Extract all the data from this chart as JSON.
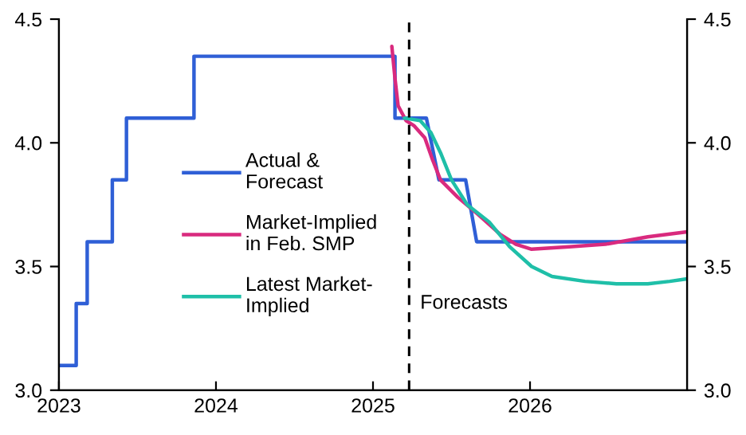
{
  "chart_data": {
    "type": "line",
    "series": [
      {
        "name": "Actual &\nForecast",
        "color": "#2f5fd6",
        "x": [
          2023.0,
          2023.11,
          2023.11,
          2023.18,
          2023.18,
          2023.34,
          2023.34,
          2023.43,
          2023.43,
          2023.86,
          2023.86,
          2025.14,
          2025.14,
          2025.34,
          2025.42,
          2025.59,
          2025.66,
          2027.0
        ],
        "values": [
          3.1,
          3.1,
          3.35,
          3.35,
          3.6,
          3.6,
          3.85,
          3.85,
          4.1,
          4.1,
          4.35,
          4.35,
          4.1,
          4.1,
          3.85,
          3.85,
          3.6,
          3.6
        ]
      },
      {
        "name": "Market-Implied\nin Feb. SMP",
        "color": "#d92a7e",
        "x": [
          2025.12,
          2025.14,
          2025.16,
          2025.21,
          2025.26,
          2025.33,
          2025.38,
          2025.43,
          2025.54,
          2025.67,
          2025.81,
          2025.91,
          2026.01,
          2026.25,
          2026.48,
          2026.75,
          2027.0
        ],
        "values": [
          4.39,
          4.26,
          4.15,
          4.09,
          4.07,
          4.02,
          3.93,
          3.85,
          3.78,
          3.71,
          3.63,
          3.59,
          3.57,
          3.58,
          3.59,
          3.62,
          3.64
        ]
      },
      {
        "name": "Latest Market-\nImplied",
        "color": "#1fbfa8",
        "x": [
          2025.2,
          2025.3,
          2025.37,
          2025.43,
          2025.5,
          2025.6,
          2025.74,
          2025.87,
          2026.01,
          2026.14,
          2026.35,
          2026.55,
          2026.75,
          2026.89,
          2027.0
        ],
        "values": [
          4.1,
          4.09,
          4.04,
          3.96,
          3.85,
          3.75,
          3.68,
          3.58,
          3.5,
          3.46,
          3.44,
          3.43,
          3.43,
          3.44,
          3.45
        ]
      }
    ],
    "xlim": [
      2023,
      2027
    ],
    "xticks": [
      2023,
      2024,
      2025,
      2026
    ],
    "ylim": [
      3,
      4.5
    ],
    "yticks": [
      {
        "value": 3,
        "label": "3.0"
      },
      {
        "value": 3.5,
        "label": "3.5"
      },
      {
        "value": 4,
        "label": "4.0"
      },
      {
        "value": 4.5,
        "label": "4.5"
      }
    ],
    "y2lim": [
      3,
      4.5
    ],
    "y2ticks": [
      {
        "value": 3,
        "label": "3.0"
      },
      {
        "value": 3.5,
        "label": "3.5"
      },
      {
        "value": 4,
        "label": "4.0"
      },
      {
        "value": 4.5,
        "label": "4.5"
      }
    ],
    "ref_lines": [
      {
        "axis": "x",
        "value": 2025.23,
        "label": "Forecasts",
        "color": "#000000",
        "line_style": "dashed"
      }
    ],
    "legend": "left"
  }
}
